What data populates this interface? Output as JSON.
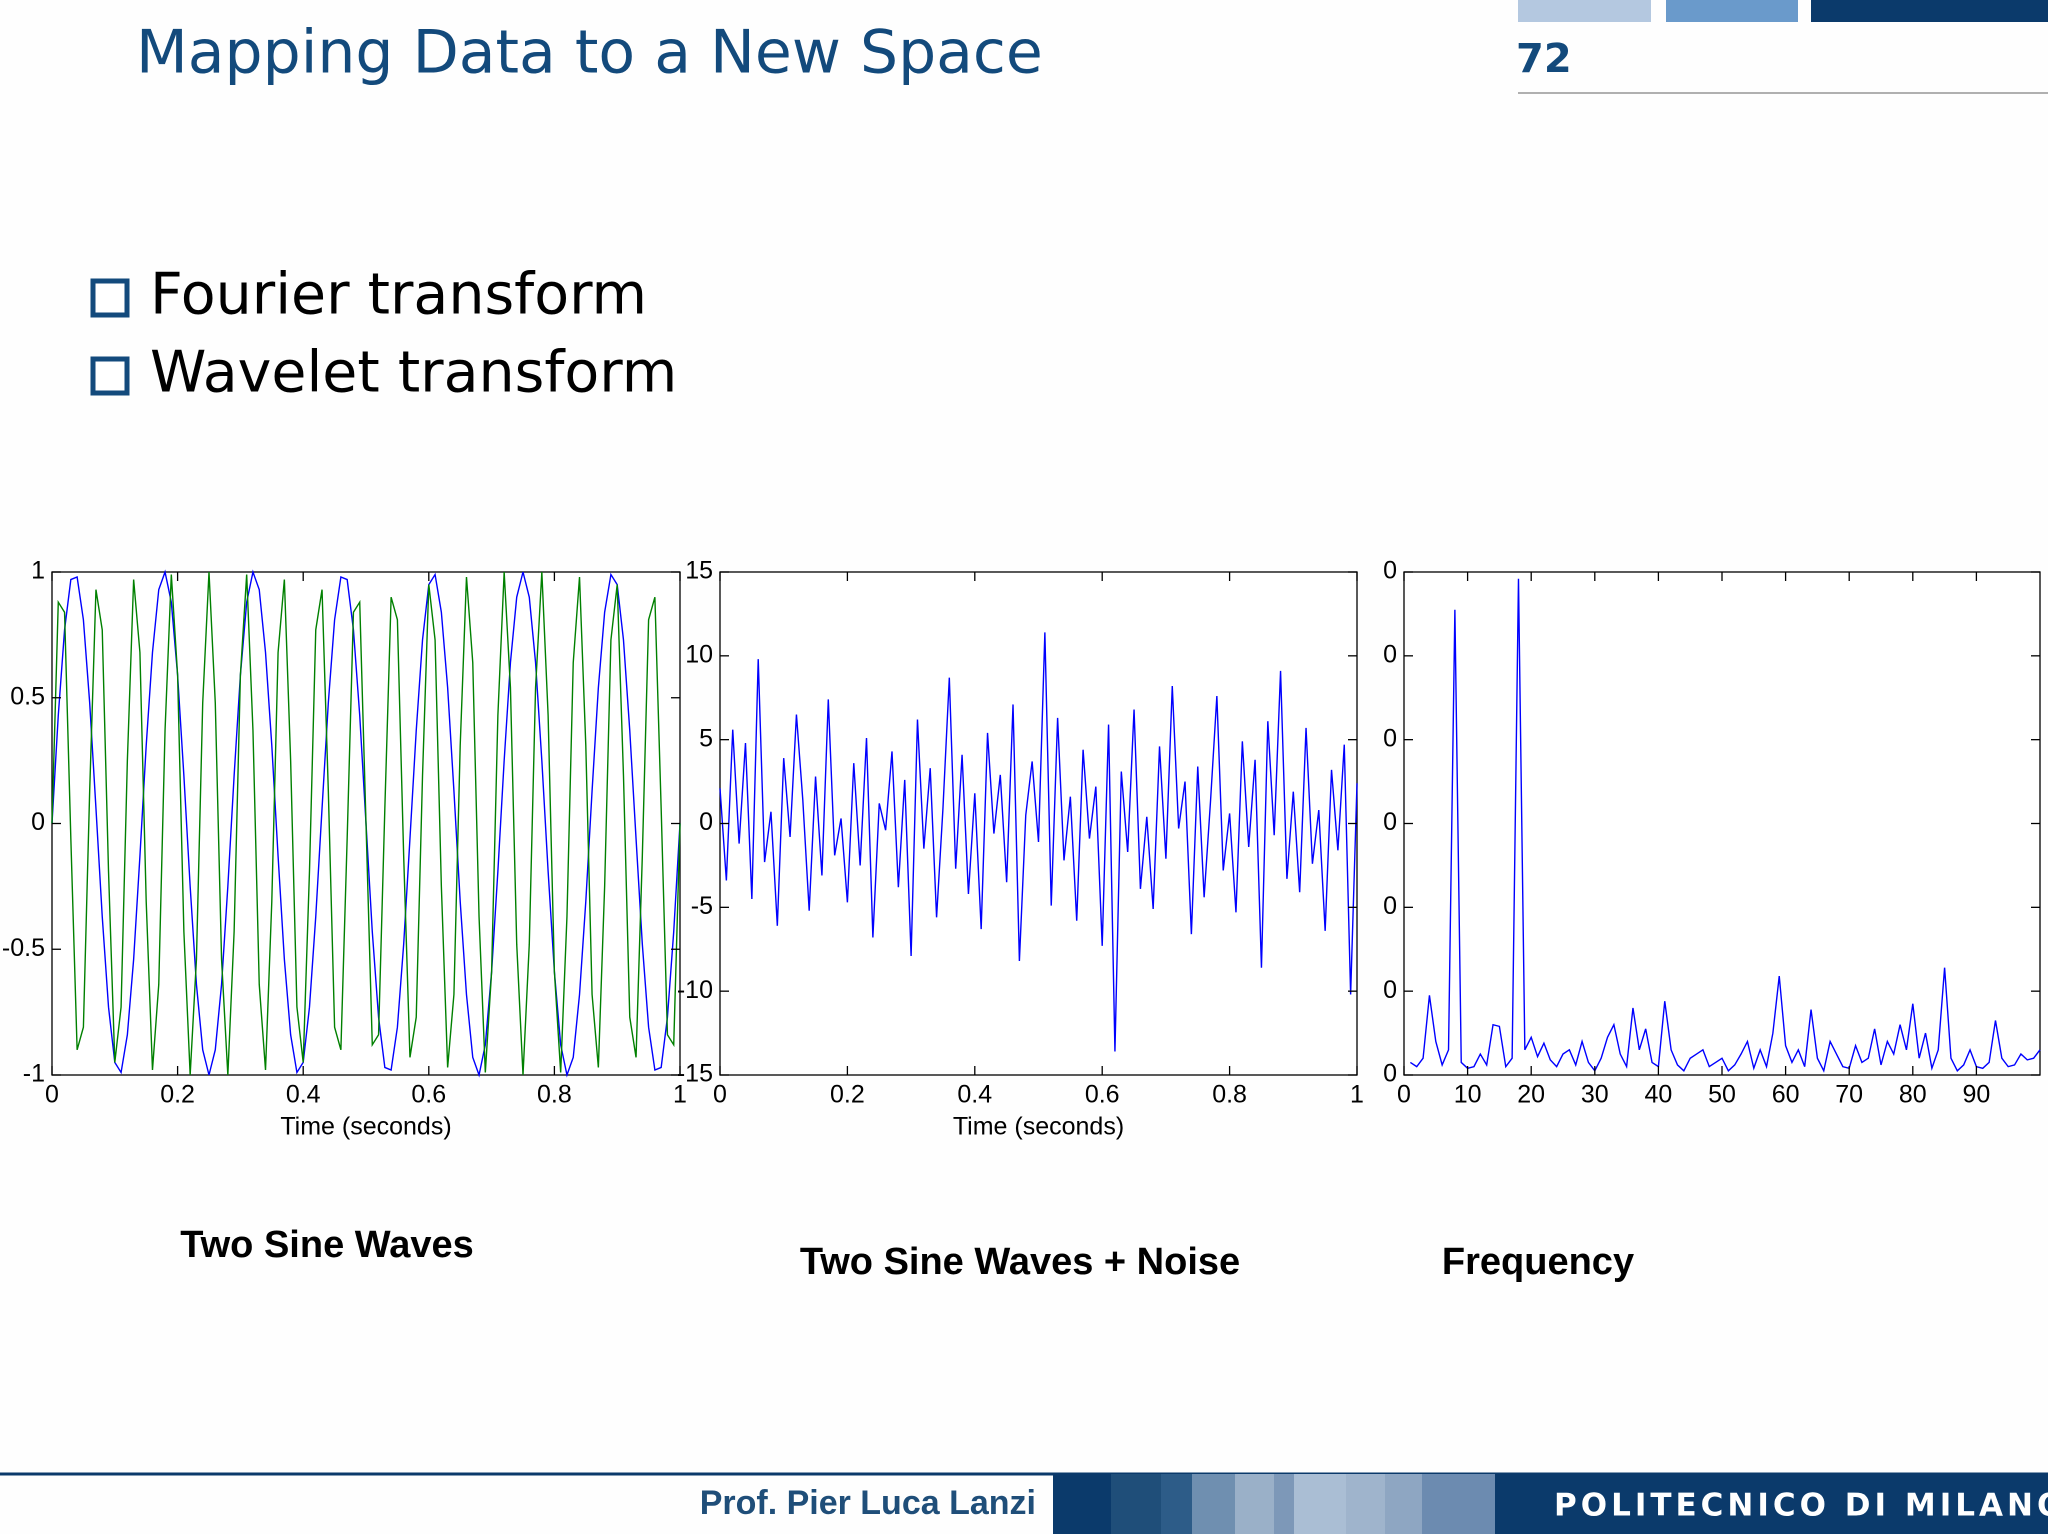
{
  "header": {
    "title": "Mapping Data to a New Space",
    "page_number": "72"
  },
  "bullets": [
    "Fourier transform",
    "Wavelet transform"
  ],
  "chart_data": [
    {
      "type": "line",
      "title": "Two Sine Waves",
      "xlabel": "Time (seconds)",
      "x": [
        0,
        0.01,
        0.02,
        0.03,
        0.04,
        0.05,
        0.06,
        0.07,
        0.08,
        0.09,
        0.1,
        0.11,
        0.12,
        0.13,
        0.14,
        0.15,
        0.16,
        0.17,
        0.18,
        0.19,
        0.2,
        0.21,
        0.22,
        0.23,
        0.24,
        0.25,
        0.26,
        0.27,
        0.28,
        0.29,
        0.3,
        0.31,
        0.32,
        0.33,
        0.34,
        0.35,
        0.36,
        0.37,
        0.38,
        0.39,
        0.4,
        0.41,
        0.42,
        0.43,
        0.44,
        0.45,
        0.46,
        0.47,
        0.48,
        0.49,
        0.5,
        0.51,
        0.52,
        0.53,
        0.54,
        0.55,
        0.56,
        0.57,
        0.58,
        0.59,
        0.6,
        0.61,
        0.62,
        0.63,
        0.64,
        0.65,
        0.66,
        0.67,
        0.68,
        0.69,
        0.7,
        0.71,
        0.72,
        0.73,
        0.74,
        0.75,
        0.76,
        0.77,
        0.78,
        0.79,
        0.8,
        0.81,
        0.82,
        0.83,
        0.84,
        0.85,
        0.86,
        0.87,
        0.88,
        0.89,
        0.9,
        0.91,
        0.92,
        0.93,
        0.94,
        0.95,
        0.96,
        0.97,
        0.98,
        0.99,
        1
      ],
      "series": [
        {
          "color": "#0000ff",
          "values": [
            0,
            0.43,
            0.77,
            0.97,
            0.98,
            0.81,
            0.48,
            0.06,
            -0.37,
            -0.73,
            -0.95,
            -0.99,
            -0.84,
            -0.54,
            -0.13,
            0.31,
            0.68,
            0.93,
            1,
            0.88,
            0.59,
            0.19,
            -0.25,
            -0.64,
            -0.9,
            -1,
            -0.9,
            -0.64,
            -0.25,
            0.19,
            0.59,
            0.88,
            1,
            0.93,
            0.68,
            0.31,
            -0.13,
            -0.54,
            -0.84,
            -0.99,
            -0.95,
            -0.73,
            -0.37,
            0.06,
            0.48,
            0.81,
            0.98,
            0.97,
            0.77,
            0.43,
            0,
            -0.43,
            -0.77,
            -0.97,
            -0.98,
            -0.81,
            -0.48,
            -0.06,
            0.37,
            0.73,
            0.95,
            0.99,
            0.84,
            0.54,
            0.13,
            -0.31,
            -0.68,
            -0.93,
            -1,
            -0.88,
            -0.59,
            -0.19,
            0.25,
            0.64,
            0.9,
            1,
            0.9,
            0.64,
            0.25,
            -0.19,
            -0.59,
            -0.88,
            -1,
            -0.93,
            -0.68,
            -0.31,
            0.13,
            0.54,
            0.84,
            0.99,
            0.95,
            0.73,
            0.37,
            -0.06,
            -0.48,
            -0.81,
            -0.98,
            -0.97,
            -0.77,
            -0.43,
            0
          ]
        },
        {
          "color": "#008000",
          "values": [
            0,
            0.88,
            0.84,
            -0.06,
            -0.9,
            -0.81,
            0.13,
            0.93,
            0.77,
            -0.19,
            -0.95,
            -0.73,
            0.25,
            0.97,
            0.68,
            -0.31,
            -0.98,
            -0.64,
            0.37,
            0.99,
            0.59,
            -0.43,
            -1,
            -0.54,
            0.48,
            1,
            0.48,
            -0.54,
            -1,
            -0.43,
            0.59,
            0.99,
            0.37,
            -0.64,
            -0.98,
            -0.31,
            0.68,
            0.97,
            0.25,
            -0.73,
            -0.95,
            -0.19,
            0.77,
            0.93,
            0.13,
            -0.81,
            -0.9,
            -0.06,
            0.84,
            0.88,
            0,
            -0.88,
            -0.84,
            0.06,
            0.9,
            0.81,
            -0.13,
            -0.93,
            -0.77,
            0.19,
            0.95,
            0.73,
            -0.25,
            -0.97,
            -0.68,
            0.31,
            0.98,
            0.64,
            -0.37,
            -0.99,
            -0.59,
            0.43,
            1,
            0.54,
            -0.48,
            -1,
            -0.48,
            0.54,
            1,
            0.43,
            -0.59,
            -0.99,
            -0.37,
            0.64,
            0.98,
            0.31,
            -0.68,
            -0.97,
            -0.25,
            0.73,
            0.95,
            0.19,
            -0.77,
            -0.93,
            -0.13,
            0.81,
            0.9,
            0.06,
            -0.84,
            -0.88,
            0
          ]
        }
      ],
      "xlim": [
        0,
        1
      ],
      "ylim": [
        -1,
        1
      ],
      "xticks": [
        0,
        0.2,
        0.4,
        0.6,
        0.8,
        1
      ],
      "yticks": [
        -1,
        -0.5,
        0,
        0.5,
        1
      ]
    },
    {
      "type": "line",
      "title": "Two Sine Waves + Noise",
      "xlabel": "Time (seconds)",
      "x": [
        0,
        0.01,
        0.02,
        0.03,
        0.04,
        0.05,
        0.06,
        0.07,
        0.08,
        0.09,
        0.1,
        0.11,
        0.12,
        0.13,
        0.14,
        0.15,
        0.16,
        0.17,
        0.18,
        0.19,
        0.2,
        0.21,
        0.22,
        0.23,
        0.24,
        0.25,
        0.26,
        0.27,
        0.28,
        0.29,
        0.3,
        0.31,
        0.32,
        0.33,
        0.34,
        0.35,
        0.36,
        0.37,
        0.38,
        0.39,
        0.4,
        0.41,
        0.42,
        0.43,
        0.44,
        0.45,
        0.46,
        0.47,
        0.48,
        0.49,
        0.5,
        0.51,
        0.52,
        0.53,
        0.54,
        0.55,
        0.56,
        0.57,
        0.58,
        0.59,
        0.6,
        0.61,
        0.62,
        0.63,
        0.64,
        0.65,
        0.66,
        0.67,
        0.68,
        0.69,
        0.7,
        0.71,
        0.72,
        0.73,
        0.74,
        0.75,
        0.76,
        0.77,
        0.78,
        0.79,
        0.8,
        0.81,
        0.82,
        0.83,
        0.84,
        0.85,
        0.86,
        0.87,
        0.88,
        0.89,
        0.9,
        0.91,
        0.92,
        0.93,
        0.94,
        0.95,
        0.96,
        0.97,
        0.98,
        0.99,
        1
      ],
      "series": [
        {
          "color": "#0000ff",
          "values": [
            2.1,
            -3.4,
            5.6,
            -1.2,
            4.8,
            -4.5,
            9.8,
            -2.3,
            0.7,
            -6.1,
            3.9,
            -0.8,
            6.5,
            1.4,
            -5.2,
            2.8,
            -3.1,
            7.4,
            -1.9,
            0.3,
            -4.7,
            3.6,
            -2.5,
            5.1,
            -6.8,
            1.2,
            -0.4,
            4.3,
            -3.8,
            2.6,
            -7.9,
            6.2,
            -1.5,
            3.3,
            -5.6,
            0.9,
            8.7,
            -2.7,
            4.1,
            -4.2,
            1.8,
            -6.3,
            5.4,
            -0.6,
            2.9,
            -3.5,
            7.1,
            -8.2,
            0.5,
            3.7,
            -1.1,
            11.4,
            -4.9,
            6.3,
            -2.2,
            1.6,
            -5.8,
            4.4,
            -0.9,
            2.2,
            -7.3,
            5.9,
            -13.6,
            3.1,
            -1.7,
            6.8,
            -3.9,
            0.4,
            -5.1,
            4.6,
            -2.1,
            8.2,
            -0.3,
            2.5,
            -6.6,
            3.4,
            -4.4,
            1.3,
            7.6,
            -2.8,
            0.6,
            -5.3,
            4.9,
            -1.4,
            3.8,
            -8.6,
            6.1,
            -0.7,
            9.1,
            -3.3,
            1.9,
            -4.1,
            5.7,
            -2.4,
            0.8,
            -6.4,
            3.2,
            -1.6,
            4.7,
            -10.2,
            2.4
          ]
        }
      ],
      "xlim": [
        0,
        1
      ],
      "ylim": [
        -15,
        15
      ],
      "xticks": [
        0,
        0.2,
        0.4,
        0.6,
        0.8,
        1
      ],
      "yticks": [
        -15,
        -10,
        -5,
        0,
        5,
        10,
        15
      ]
    },
    {
      "type": "line",
      "title": "Frequency",
      "x": [
        1,
        2,
        3,
        4,
        5,
        6,
        7,
        8,
        9,
        10,
        11,
        12,
        13,
        14,
        15,
        16,
        17,
        18,
        19,
        20,
        21,
        22,
        23,
        24,
        25,
        26,
        27,
        28,
        29,
        30,
        31,
        32,
        33,
        34,
        35,
        36,
        37,
        38,
        39,
        40,
        41,
        42,
        43,
        44,
        45,
        46,
        47,
        48,
        49,
        50,
        51,
        52,
        53,
        54,
        55,
        56,
        57,
        58,
        59,
        60,
        61,
        62,
        63,
        64,
        65,
        66,
        67,
        68,
        69,
        70,
        71,
        72,
        73,
        74,
        75,
        76,
        77,
        78,
        79,
        80,
        81,
        82,
        83,
        84,
        85,
        86,
        87,
        88,
        89,
        90,
        91,
        92,
        93,
        94,
        95,
        96,
        97,
        98,
        99,
        100
      ],
      "series": [
        {
          "color": "#0000ff",
          "values": [
            15,
            10,
            20,
            95,
            40,
            12,
            30,
            555,
            15,
            8,
            10,
            25,
            12,
            60,
            58,
            10,
            20,
            592,
            30,
            45,
            22,
            38,
            18,
            10,
            25,
            30,
            12,
            40,
            15,
            5,
            20,
            45,
            60,
            25,
            10,
            80,
            30,
            55,
            15,
            10,
            88,
            30,
            12,
            5,
            20,
            25,
            30,
            10,
            15,
            20,
            5,
            12,
            25,
            40,
            8,
            30,
            10,
            50,
            118,
            35,
            15,
            30,
            10,
            78,
            20,
            5,
            40,
            25,
            10,
            8,
            35,
            15,
            20,
            55,
            12,
            40,
            25,
            60,
            30,
            85,
            20,
            50,
            8,
            30,
            128,
            20,
            5,
            12,
            30,
            10,
            8,
            15,
            65,
            20,
            10,
            12,
            25,
            18,
            20,
            30
          ]
        }
      ],
      "xlim": [
        0,
        100
      ],
      "ylim": [
        0,
        600
      ],
      "xticks": [
        0,
        10,
        20,
        30,
        40,
        50,
        60,
        70,
        80,
        90
      ],
      "yticks": [
        0,
        {
          "value": 100,
          "label": "0"
        },
        {
          "value": 200,
          "label": "0"
        },
        {
          "value": 300,
          "label": "0"
        },
        {
          "value": 400,
          "label": "0"
        },
        {
          "value": 500,
          "label": "0"
        },
        {
          "value": 600,
          "label": "0"
        }
      ]
    }
  ],
  "footer": {
    "author": "Prof. Pier Luca Lanzi",
    "institution": "POLITECNICO DI MILANO"
  }
}
